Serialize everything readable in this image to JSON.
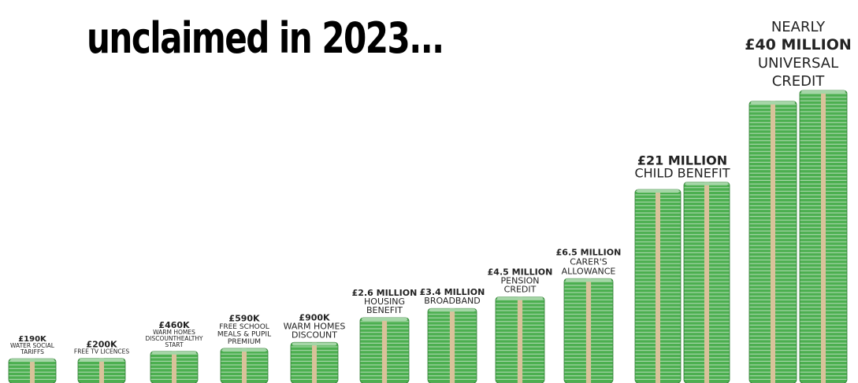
{
  "title": "unclaimed in 2023...",
  "chart_data": {
    "type": "bar",
    "unit": "£",
    "categories": [
      "WATER SOCIAL TARIFFS",
      "FREE TV LICENCES",
      "WARM HOMES DISCOUNTHEALTHY START",
      "FREE SCHOOL MEALS & PUPIL PREMIUM",
      "WARM HOMES DISCOUNT",
      "HOUSING BENEFIT",
      "BROADBAND",
      "PENSION CREDIT",
      "CARER'S ALLOWANCE",
      "CHILD BENEFIT",
      "UNIVERSAL CREDIT"
    ],
    "values": [
      190000,
      200000,
      460000,
      590000,
      900000,
      2600000,
      3400000,
      4500000,
      6500000,
      21000000,
      40000000
    ],
    "labels": [
      {
        "prefix": "",
        "value": "£190K",
        "desc": [
          "WATER SOCIAL",
          "TARIFFS"
        ]
      },
      {
        "prefix": "",
        "value": "£200K",
        "desc": [
          "FREE TV LICENCES"
        ]
      },
      {
        "prefix": "",
        "value": "£460K",
        "desc": [
          "WARM HOMES",
          "DISCOUNTHEALTHY",
          "START"
        ]
      },
      {
        "prefix": "",
        "value": "£590K",
        "desc": [
          "FREE SCHOOL",
          "MEALS & PUPIL",
          "PREMIUM"
        ]
      },
      {
        "prefix": "",
        "value": "£900K",
        "desc": [
          "WARM HOMES",
          "DISCOUNT"
        ]
      },
      {
        "prefix": "",
        "value": "£2.6 MILLION",
        "desc": [
          "HOUSING",
          "BENEFIT"
        ]
      },
      {
        "prefix": "",
        "value": "£3.4 MILLION",
        "desc": [
          "BROADBAND"
        ]
      },
      {
        "prefix": "",
        "value": "£4.5 MILLION",
        "desc": [
          "PENSION",
          "CREDIT"
        ]
      },
      {
        "prefix": "",
        "value": "£6.5 MILLION",
        "desc": [
          "CARER'S",
          "ALLOWANCE"
        ]
      },
      {
        "prefix": "",
        "value": "£21 MILLION",
        "desc": [
          "CHILD BENEFIT"
        ]
      },
      {
        "prefix": "NEARLY",
        "value": "£40 MILLION",
        "desc": [
          "UNIVERSAL",
          "CREDIT"
        ]
      }
    ]
  },
  "colors": {
    "cash_green": "#4caf50",
    "cash_dark": "#2e7d32",
    "cash_light": "#a5d6a7",
    "band": "#d9c29a",
    "text": "#222222"
  }
}
